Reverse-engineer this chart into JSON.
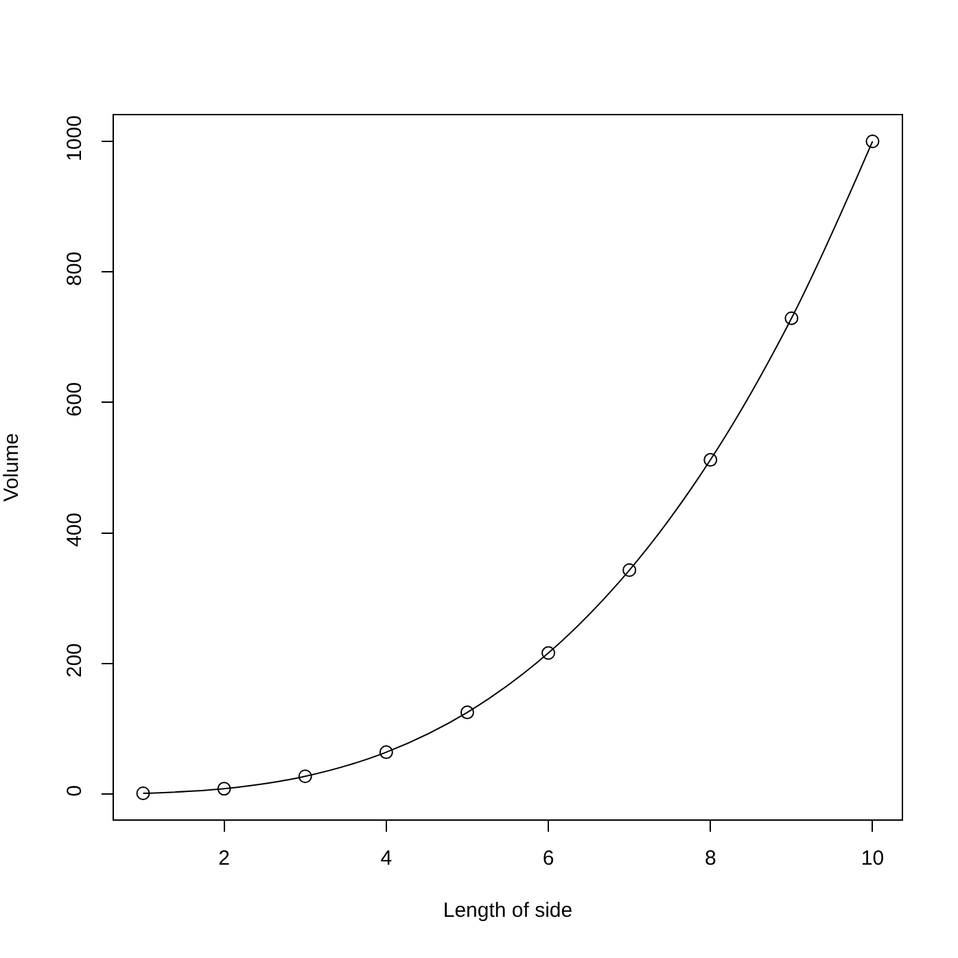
{
  "chart_data": {
    "type": "line",
    "xlabel": "Length of side",
    "ylabel": "Volume",
    "x": [
      1,
      2,
      3,
      4,
      5,
      6,
      7,
      8,
      9,
      10
    ],
    "series": [
      {
        "color": "#000000",
        "values": [
          1,
          8,
          27,
          64,
          125,
          216,
          343,
          512,
          729,
          1000
        ]
      }
    ],
    "xlim": [
      0.64,
      10.36
    ],
    "xticks": [
      2,
      4,
      6,
      8,
      10
    ],
    "ylim": [
      -38.96,
      1039.96
    ],
    "yticks": [
      0,
      200,
      400,
      600,
      800,
      1000
    ],
    "marker": "circle",
    "line_style": "solid"
  }
}
